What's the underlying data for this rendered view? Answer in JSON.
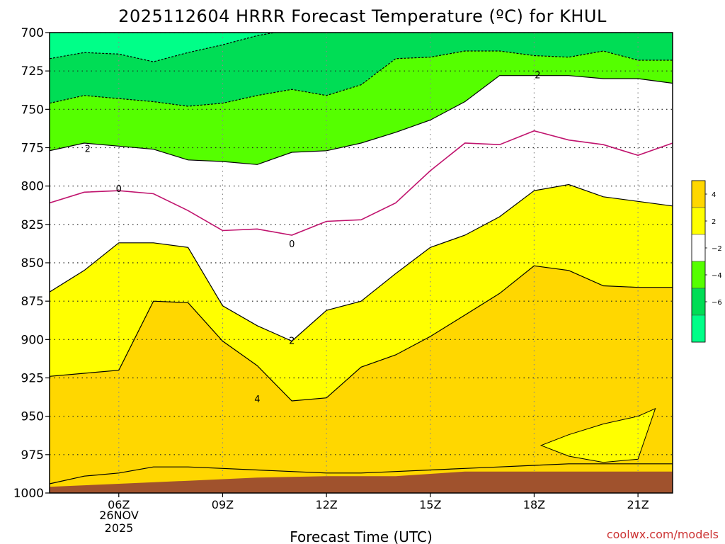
{
  "chart_data": {
    "type": "heatmap",
    "title": "2025112604 HRRR Forecast Temperature (ºC) for KHUL",
    "xlabel": "Forecast Time (UTC)",
    "ylabel": "",
    "credit": "coolwx.com/models",
    "x_ticks": [
      "06Z",
      "09Z",
      "12Z",
      "15Z",
      "18Z",
      "21Z"
    ],
    "x_date": [
      "26NOV",
      "2025"
    ],
    "y_ticks": [
      "700",
      "725",
      "750",
      "775",
      "800",
      "825",
      "850",
      "875",
      "900",
      "925",
      "950",
      "975",
      "1000"
    ],
    "ylim": [
      1000,
      700
    ],
    "x_hours": [
      6,
      9,
      12,
      15,
      18,
      21
    ],
    "xlim": [
      4,
      22
    ],
    "grid": true,
    "legend": "right",
    "colorbar": {
      "labels": [
        "4",
        "2",
        "−2",
        "−4",
        "−6"
      ],
      "colors": [
        "#ffd700",
        "#ffff00",
        "#ffffff",
        "#55ff00",
        "#00dd55",
        "#00ff88"
      ]
    },
    "contour_labels": [
      {
        "text": "2",
        "hour": 5.1,
        "p": 776
      },
      {
        "text": "0",
        "hour": 6.0,
        "p": 802
      },
      {
        "text": "0",
        "hour": 11.0,
        "p": 838
      },
      {
        "text": "2",
        "hour": 11.0,
        "p": 901
      },
      {
        "text": "4",
        "hour": 10.0,
        "p": 939
      },
      {
        "text": "2",
        "hour": 18.1,
        "p": 728
      }
    ],
    "series": [
      {
        "level": -4,
        "x": [
          4,
          5,
          6,
          7,
          8,
          9,
          10,
          11,
          12,
          13,
          14,
          15,
          16,
          17,
          18,
          19,
          20,
          21,
          22
        ],
        "p": [
          717,
          713,
          714,
          719,
          713,
          708,
          702,
          698,
          698,
          698,
          698,
          698,
          698,
          698,
          698,
          698,
          698,
          698,
          698
        ]
      },
      {
        "level": -2,
        "x": [
          4,
          5,
          6,
          7,
          8,
          9,
          10,
          11,
          12,
          13,
          14,
          15,
          16,
          17,
          18,
          19,
          20,
          21,
          22
        ],
        "p": [
          746,
          741,
          743,
          745,
          748,
          746,
          741,
          737,
          741,
          734,
          717,
          716,
          712,
          712,
          715,
          716,
          712,
          718,
          718
        ]
      },
      {
        "level": 2,
        "x": [
          4,
          5,
          6,
          7,
          8,
          9,
          10,
          11,
          12,
          13,
          14,
          15,
          16,
          17,
          18,
          19,
          20,
          21,
          22
        ],
        "p": [
          777,
          772,
          774,
          776,
          783,
          784,
          786,
          778,
          777,
          772,
          765,
          757,
          745,
          728,
          728,
          728,
          730,
          730,
          733
        ]
      },
      {
        "level": 0,
        "x": [
          4,
          5,
          6,
          7,
          8,
          9,
          10,
          11,
          12,
          13,
          14,
          15,
          16,
          17,
          18,
          19,
          20,
          21,
          22
        ],
        "p": [
          811,
          804,
          803,
          805,
          816,
          829,
          828,
          832,
          823,
          822,
          811,
          790,
          772,
          773,
          764,
          770,
          773,
          780,
          772
        ]
      },
      {
        "level": 2,
        "x": [
          4,
          5,
          6,
          7,
          8,
          9,
          10,
          11,
          12,
          13,
          14,
          15,
          16,
          17,
          18,
          19,
          20,
          21,
          22
        ],
        "p": [
          869,
          855,
          837,
          837,
          840,
          878,
          891,
          901,
          881,
          875,
          857,
          840,
          832,
          820,
          803,
          799,
          807,
          810,
          813
        ]
      },
      {
        "level": 4,
        "x": [
          4,
          5,
          6,
          7,
          8,
          9,
          10,
          11,
          12,
          13,
          14,
          15,
          16,
          17,
          18,
          19,
          20,
          21,
          22
        ],
        "p": [
          924,
          922,
          920,
          875,
          876,
          901,
          917,
          940,
          938,
          918,
          910,
          898,
          884,
          870,
          852,
          855,
          865,
          866,
          866
        ]
      },
      {
        "level": 4,
        "x": [
          4,
          5,
          6,
          7,
          8,
          9,
          10,
          11,
          12,
          13,
          14,
          15,
          16,
          17,
          18,
          19,
          20,
          21,
          22
        ],
        "p": [
          994,
          989,
          987,
          983,
          983,
          984,
          985,
          986,
          987,
          987,
          986,
          985,
          984,
          983,
          982,
          981,
          981,
          981,
          981
        ]
      }
    ],
    "warm_pocket": {
      "x": [
        18.2,
        19,
        20,
        21,
        21.5,
        21,
        20,
        19,
        18.2
      ],
      "p": [
        969,
        962,
        955,
        950,
        945,
        978,
        980,
        976,
        969
      ]
    },
    "terrain": {
      "x": [
        4,
        6,
        8,
        10,
        12,
        14,
        16,
        18,
        20,
        22
      ],
      "p": [
        996,
        994,
        992,
        990,
        989,
        989,
        986,
        986,
        986,
        986
      ]
    }
  }
}
